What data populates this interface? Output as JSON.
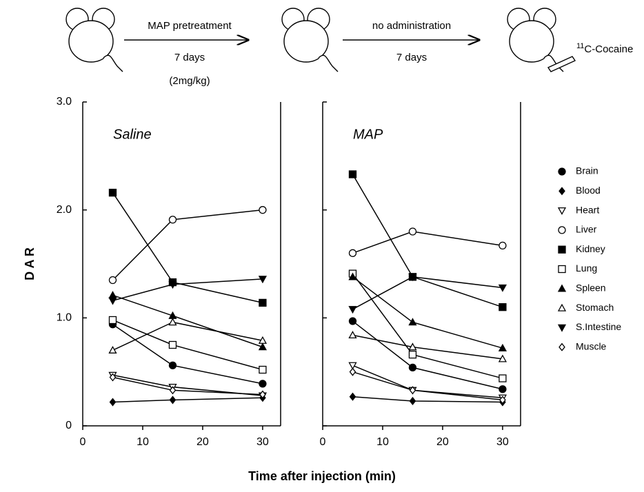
{
  "diagram": {
    "step1": {
      "label": "MAP pretreatment",
      "duration": "7 days",
      "dose": "(2mg/kg)"
    },
    "step2": {
      "label": "no administration",
      "duration": "7 days"
    },
    "tracer": {
      "isotope": "11",
      "label": "C-Cocaine"
    }
  },
  "chart_data": [
    {
      "type": "line",
      "title": "Saline",
      "xlabel": "Time after injection  (min)",
      "ylabel": "D A R",
      "x": [
        5,
        15,
        30
      ],
      "xlim": [
        0,
        33
      ],
      "xticks": [
        0,
        10,
        20,
        30
      ],
      "ylim": [
        0,
        3
      ],
      "yticks": [
        0,
        {
          "value": 1,
          "label": "1.0"
        },
        {
          "value": 2,
          "label": "2.0"
        },
        {
          "value": 3,
          "label": "3.0"
        }
      ],
      "series": [
        {
          "name": "Brain",
          "marker": "circle",
          "filled": true,
          "color": "#000000",
          "values": [
            0.94,
            0.56,
            0.39
          ]
        },
        {
          "name": "Blood",
          "marker": "diamond",
          "filled": true,
          "color": "#000000",
          "values": [
            0.22,
            0.24,
            0.26
          ]
        },
        {
          "name": "Heart",
          "marker": "triangle-down",
          "filled": false,
          "color": "#000000",
          "values": [
            0.47,
            0.36,
            0.28
          ]
        },
        {
          "name": "Liver",
          "marker": "circle",
          "filled": false,
          "color": "#000000",
          "values": [
            1.35,
            1.91,
            2.0
          ]
        },
        {
          "name": "Kidney",
          "marker": "square",
          "filled": true,
          "color": "#000000",
          "values": [
            2.16,
            1.33,
            1.14
          ]
        },
        {
          "name": "Lung",
          "marker": "square",
          "filled": false,
          "color": "#000000",
          "values": [
            0.98,
            0.75,
            0.52
          ]
        },
        {
          "name": "Spleen",
          "marker": "triangle-up",
          "filled": true,
          "color": "#000000",
          "values": [
            1.21,
            1.02,
            0.73
          ]
        },
        {
          "name": "Stomach",
          "marker": "triangle-up",
          "filled": false,
          "color": "#000000",
          "values": [
            0.7,
            0.96,
            0.79
          ]
        },
        {
          "name": "S.Intestine",
          "marker": "triangle-down",
          "filled": true,
          "color": "#000000",
          "values": [
            1.16,
            1.31,
            1.36
          ]
        },
        {
          "name": "Muscle",
          "marker": "diamond",
          "filled": false,
          "color": "#000000",
          "values": [
            0.45,
            0.33,
            0.29
          ]
        }
      ]
    },
    {
      "type": "line",
      "title": "MAP",
      "x": [
        5,
        15,
        30
      ],
      "xlim": [
        0,
        33
      ],
      "xticks": [
        0,
        10,
        20,
        30
      ],
      "ylim": [
        0,
        3
      ],
      "yticks": [
        0,
        1,
        2,
        3
      ],
      "series": [
        {
          "marker": "circle",
          "filled": true,
          "color": "#000000",
          "values": [
            0.97,
            0.54,
            0.34
          ]
        },
        {
          "marker": "diamond",
          "filled": true,
          "color": "#000000",
          "values": [
            0.27,
            0.23,
            0.22
          ]
        },
        {
          "marker": "triangle-down",
          "filled": false,
          "color": "#000000",
          "values": [
            0.56,
            0.33,
            0.26
          ]
        },
        {
          "marker": "circle",
          "filled": false,
          "color": "#000000",
          "values": [
            1.6,
            1.8,
            1.67
          ]
        },
        {
          "marker": "square",
          "filled": true,
          "color": "#000000",
          "values": [
            2.33,
            1.38,
            1.1
          ]
        },
        {
          "marker": "square",
          "filled": false,
          "color": "#000000",
          "values": [
            1.41,
            0.66,
            0.44
          ]
        },
        {
          "marker": "triangle-up",
          "filled": true,
          "color": "#000000",
          "values": [
            1.38,
            0.96,
            0.72
          ]
        },
        {
          "marker": "triangle-up",
          "filled": false,
          "color": "#000000",
          "values": [
            0.84,
            0.73,
            0.62
          ]
        },
        {
          "marker": "triangle-down",
          "filled": true,
          "color": "#000000",
          "values": [
            1.08,
            1.38,
            1.28
          ]
        },
        {
          "marker": "diamond",
          "filled": false,
          "color": "#000000",
          "values": [
            0.5,
            0.33,
            0.24
          ]
        }
      ]
    }
  ]
}
